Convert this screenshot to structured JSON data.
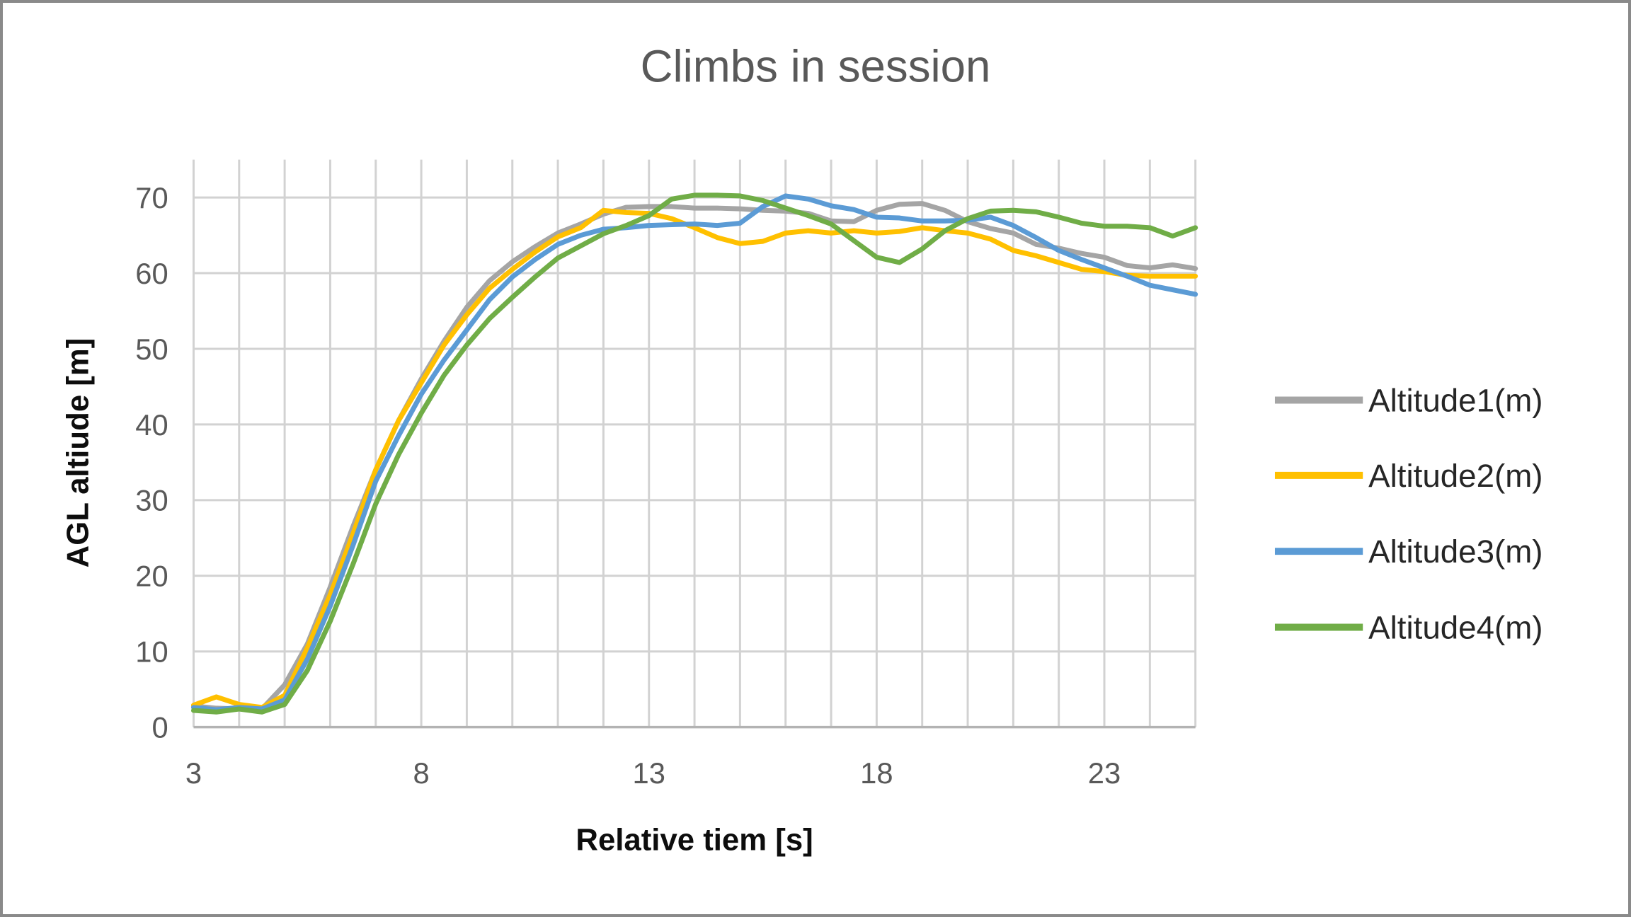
{
  "window": {
    "background": "#ffffff",
    "border_color": "#8a8a8a"
  },
  "chart_data": {
    "type": "line",
    "title": "Climbs in session",
    "xlabel": "Relative tiem [s]",
    "ylabel": "AGL altiude [m]",
    "xlim": [
      3,
      25
    ],
    "ylim": [
      0,
      75
    ],
    "x_ticks": [
      3,
      8,
      13,
      18,
      23
    ],
    "y_ticks": [
      0,
      10,
      20,
      30,
      40,
      50,
      60,
      70
    ],
    "x_minor_grid_step": 1,
    "grid": true,
    "legend_position": "right",
    "colors": {
      "title_text": "#595959",
      "tick_text": "#595959",
      "axis_title_text": "#0d0d0d",
      "legend_text": "#262626",
      "gridline": "#d2d2d2",
      "axis_line": "#b3b3b3"
    },
    "x_start": 3,
    "x_step": 0.5,
    "series": [
      {
        "name": "Altitude1(m)",
        "color": "#a5a5a5",
        "values": [
          2.8,
          2.5,
          2.4,
          2.4,
          5.6,
          11.0,
          18.5,
          26.5,
          34.0,
          40.5,
          46.0,
          51.0,
          55.5,
          59.0,
          61.5,
          63.5,
          65.3,
          66.5,
          67.8,
          68.7,
          68.8,
          68.8,
          68.6,
          68.6,
          68.5,
          68.3,
          68.2,
          67.9,
          66.9,
          66.8,
          68.3,
          69.1,
          69.2,
          68.3,
          66.8,
          65.9,
          65.3,
          63.8,
          63.3,
          62.6,
          62.1,
          61.0,
          60.7,
          61.1,
          60.6
        ]
      },
      {
        "name": "Altitude2(m)",
        "color": "#ffc000",
        "values": [
          2.9,
          4.0,
          3.0,
          2.6,
          4.2,
          10.5,
          17.5,
          25.5,
          34.0,
          40.5,
          45.5,
          50.5,
          54.5,
          58.0,
          60.5,
          62.8,
          64.8,
          66.0,
          68.3,
          68.0,
          67.9,
          67.2,
          66.0,
          64.7,
          63.9,
          64.2,
          65.3,
          65.6,
          65.3,
          65.6,
          65.3,
          65.5,
          66.0,
          65.6,
          65.3,
          64.5,
          63.0,
          62.3,
          61.4,
          60.5,
          60.2,
          59.7,
          59.6,
          59.6,
          59.6
        ]
      },
      {
        "name": "Altitude3(m)",
        "color": "#5b9bd5",
        "values": [
          2.6,
          2.3,
          2.6,
          2.4,
          3.6,
          9.0,
          16.0,
          24.0,
          32.5,
          38.5,
          44.0,
          48.5,
          52.5,
          56.5,
          59.5,
          61.8,
          63.8,
          65.0,
          65.8,
          66.0,
          66.3,
          66.4,
          66.5,
          66.3,
          66.6,
          68.8,
          70.2,
          69.8,
          68.9,
          68.4,
          67.4,
          67.3,
          66.9,
          66.9,
          67.0,
          67.4,
          66.3,
          64.7,
          63.0,
          61.8,
          60.7,
          59.6,
          58.4,
          57.8,
          57.2
        ]
      },
      {
        "name": "Altitude4(m)",
        "color": "#70ad47",
        "values": [
          2.2,
          2.0,
          2.4,
          2.0,
          3.0,
          7.5,
          14.0,
          21.5,
          29.5,
          36.0,
          41.5,
          46.5,
          50.5,
          54.0,
          56.8,
          59.5,
          62.0,
          63.6,
          65.2,
          66.3,
          67.6,
          69.8,
          70.3,
          70.3,
          70.2,
          69.6,
          68.6,
          67.6,
          66.5,
          64.3,
          62.1,
          61.4,
          63.2,
          65.6,
          67.2,
          68.2,
          68.3,
          68.1,
          67.4,
          66.6,
          66.2,
          66.2,
          66.0,
          64.9,
          66.0
        ]
      }
    ]
  }
}
